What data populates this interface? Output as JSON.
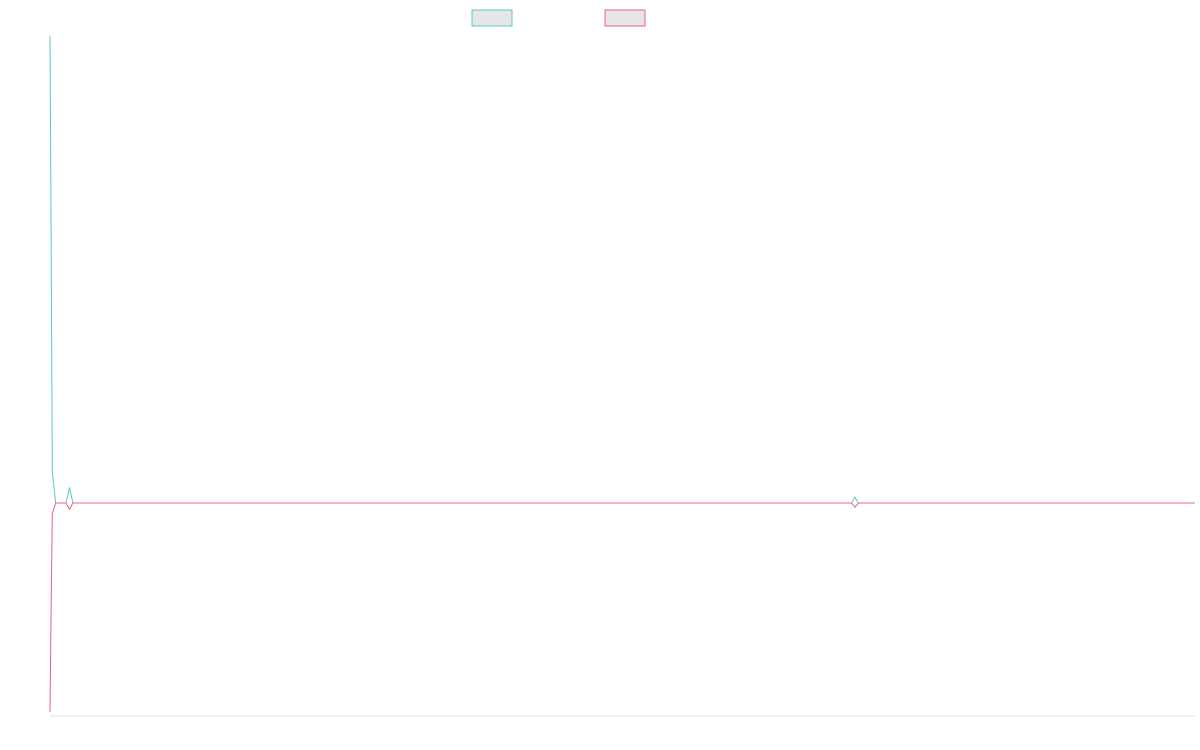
{
  "chart_data": {
    "type": "line",
    "title": "",
    "xlabel": "",
    "ylabel": "",
    "grid": false,
    "legend_position": "top-center",
    "xlim": [
      0,
      1000
    ],
    "ylim": [
      -1,
      1.2
    ],
    "series": [
      {
        "name": "",
        "color": "#5cc8c8",
        "legend_fill": "#e6e6e6",
        "points": [
          [
            0,
            1.2
          ],
          [
            1,
            0.7
          ],
          [
            2,
            0.08
          ],
          [
            5,
            0.0
          ],
          [
            14,
            0.0
          ],
          [
            17,
            0.04
          ],
          [
            20,
            0.0
          ],
          [
            700,
            0.0
          ],
          [
            703,
            0.015
          ],
          [
            706,
            0.0
          ],
          [
            1000,
            0.0
          ]
        ]
      },
      {
        "name": "",
        "color": "#f06080",
        "legend_fill": "#e6e6e6",
        "points": [
          [
            0,
            -0.98
          ],
          [
            1,
            -0.5
          ],
          [
            2,
            -0.05
          ],
          [
            5,
            0.0
          ],
          [
            14,
            0.0
          ],
          [
            17,
            -0.03
          ],
          [
            20,
            0.0
          ],
          [
            700,
            0.0
          ],
          [
            703,
            -0.02
          ],
          [
            706,
            0.0
          ],
          [
            1000,
            0.0
          ]
        ]
      }
    ]
  }
}
